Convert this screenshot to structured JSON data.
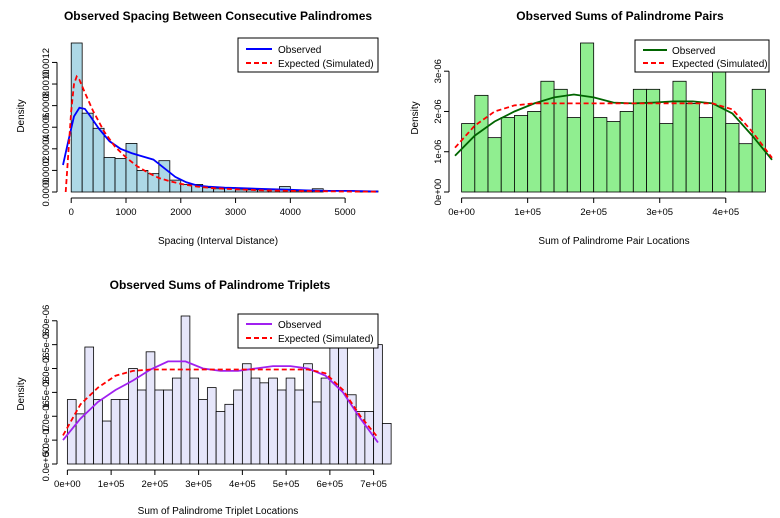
{
  "chart_data": [
    {
      "type": "bar",
      "title": "Observed Spacing Between Consecutive Palindromes",
      "xlabel": "Spacing (Interval Distance)",
      "ylabel": "Density",
      "xlim": [
        -150,
        5600
      ],
      "ylim": [
        0,
        0.00138
      ],
      "bin_width": 200,
      "bin_start": 0,
      "values": [
        0.00138,
        0.00073,
        0.00059,
        0.00032,
        0.00031,
        0.00045,
        0.0002,
        0.00017,
        0.00029,
        0.00011,
        7e-05,
        7e-05,
        4e-05,
        3e-05,
        4e-05,
        2e-05,
        2e-05,
        2e-05,
        2e-05,
        5e-05,
        1e-05,
        1e-05,
        3e-05,
        0.0,
        0.0,
        0.0,
        1e-05,
        1e-05
      ],
      "fill_color": "#add8e6",
      "x_ticks": [
        0,
        1000,
        2000,
        3000,
        4000,
        5000
      ],
      "x_tick_labels": [
        "0",
        "1000",
        "2000",
        "3000",
        "4000",
        "5000"
      ],
      "y_ticks": [
        0,
        0.0002,
        0.0004,
        0.0006,
        0.0008,
        0.001,
        0.0012
      ],
      "y_tick_labels": [
        "0.0000",
        "0.0002",
        "0.0004",
        "0.0006",
        "0.0008",
        "0.0010",
        "0.0012"
      ],
      "series": [
        {
          "name": "Observed",
          "color": "#0000ff",
          "dash": false,
          "x": [
            -150,
            -50,
            50,
            150,
            250,
            350,
            500,
            700,
            900,
            1100,
            1300,
            1500,
            1700,
            1900,
            2100,
            2300,
            2500,
            2800,
            3100,
            3400,
            3700,
            4000,
            4300,
            4700,
            5100,
            5600
          ],
          "y": [
            0.00025,
            0.00048,
            0.0007,
            0.00078,
            0.00077,
            0.0007,
            0.00059,
            0.00047,
            0.0004,
            0.00036,
            0.00033,
            0.0003,
            0.00022,
            0.00014,
            9e-05,
            6e-05,
            5e-05,
            4e-05,
            3.5e-05,
            3e-05,
            2.5e-05,
            2e-05,
            1.5e-05,
            1e-05,
            1e-05,
            5e-06
          ]
        },
        {
          "name": "Expected (Simulated)",
          "color": "#ff0000",
          "dash": true,
          "x": [
            -100,
            0,
            50,
            100,
            150,
            250,
            400,
            600,
            800,
            1000,
            1200,
            1400,
            1600,
            1800,
            2000,
            2300,
            2600,
            3000,
            3500,
            4000,
            4500,
            5000,
            5600
          ],
          "y": [
            0.0,
            0.00075,
            0.001,
            0.00107,
            0.00104,
            0.00092,
            0.00075,
            0.00056,
            0.00042,
            0.00032,
            0.00024,
            0.00018,
            0.00013,
            0.0001,
            7.5e-05,
            5e-05,
            3.5e-05,
            2.5e-05,
            1.5e-05,
            1e-05,
            7e-06,
            5e-06,
            3e-06
          ]
        }
      ],
      "legend_position": "top-right"
    },
    {
      "type": "bar",
      "title": "Observed Sums of Palindrome Pairs",
      "xlabel": "Sum of Palindrome Pair Locations",
      "ylabel": "Density",
      "xlim": [
        -10000,
        470000
      ],
      "ylim": [
        0,
        3.7e-06
      ],
      "bin_width": 20000,
      "bin_start": 0,
      "values": [
        1.7e-06,
        2.4e-06,
        1.35e-06,
        1.85e-06,
        1.9e-06,
        2e-06,
        2.75e-06,
        2.55e-06,
        1.85e-06,
        3.7e-06,
        1.85e-06,
        1.75e-06,
        2e-06,
        2.55e-06,
        2.55e-06,
        1.7e-06,
        2.75e-06,
        2.2e-06,
        1.85e-06,
        3.5e-06,
        1.7e-06,
        1.2e-06,
        2.55e-06
      ],
      "fill_color": "#90ee90",
      "x_ticks": [
        0,
        100000,
        200000,
        300000,
        400000
      ],
      "x_tick_labels": [
        "0e+00",
        "1e+05",
        "2e+05",
        "3e+05",
        "4e+05"
      ],
      "y_ticks": [
        0,
        1e-06,
        2e-06,
        3e-06
      ],
      "y_tick_labels": [
        "0e+00",
        "1e-06",
        "2e-06",
        "3e-06"
      ],
      "series": [
        {
          "name": "Observed",
          "color": "#006400",
          "dash": false,
          "x": [
            -10000,
            20000,
            50000,
            80000,
            110000,
            140000,
            170000,
            200000,
            230000,
            260000,
            290000,
            320000,
            350000,
            380000,
            410000,
            440000,
            470000
          ],
          "y": [
            9e-07,
            1.4e-06,
            1.75e-06,
            2e-06,
            2.2e-06,
            2.35e-06,
            2.42e-06,
            2.35e-06,
            2.22e-06,
            2.2e-06,
            2.22e-06,
            2.25e-06,
            2.25e-06,
            2.2e-06,
            1.95e-06,
            1.4e-06,
            8e-07
          ]
        },
        {
          "name": "Expected (Simulated)",
          "color": "#ff0000",
          "dash": true,
          "x": [
            -10000,
            20000,
            50000,
            80000,
            110000,
            140000,
            170000,
            200000,
            230000,
            260000,
            290000,
            320000,
            350000,
            380000,
            410000,
            440000,
            470000
          ],
          "y": [
            1.1e-06,
            1.65e-06,
            2e-06,
            2.15e-06,
            2.2e-06,
            2.2e-06,
            2.2e-06,
            2.2e-06,
            2.2e-06,
            2.2e-06,
            2.2e-06,
            2.2e-06,
            2.2e-06,
            2.2e-06,
            2.05e-06,
            1.5e-06,
            8.5e-07
          ]
        }
      ],
      "legend_position": "top-right"
    },
    {
      "type": "bar",
      "title": "Observed Sums of Palindrome Triplets",
      "xlabel": "Sum of Palindrome Triplet Locations",
      "ylabel": "Density",
      "xlim": [
        -10000,
        710000
      ],
      "ylim": [
        0,
        3.1e-06
      ],
      "bin_width": 20000,
      "bin_start": 0,
      "values": [
        1.35e-06,
        1.05e-06,
        2.45e-06,
        1.35e-06,
        9e-07,
        1.35e-06,
        1.35e-06,
        2e-06,
        1.55e-06,
        2.35e-06,
        1.55e-06,
        1.55e-06,
        1.8e-06,
        3.1e-06,
        1.8e-06,
        1.35e-06,
        1.6e-06,
        1.1e-06,
        1.25e-06,
        1.55e-06,
        2.1e-06,
        1.8e-06,
        1.7e-06,
        1.8e-06,
        1.55e-06,
        1.8e-06,
        1.55e-06,
        2.1e-06,
        1.3e-06,
        1.8e-06,
        2.6e-06,
        2.8e-06,
        1.45e-06,
        1.1e-06,
        1.1e-06,
        2.5e-06,
        8.5e-07
      ],
      "fill_color": "#e6e6fa",
      "x_ticks": [
        0,
        100000,
        200000,
        300000,
        400000,
        500000,
        600000,
        700000
      ],
      "x_tick_labels": [
        "0e+00",
        "1e+05",
        "2e+05",
        "3e+05",
        "4e+05",
        "5e+05",
        "6e+05",
        "7e+05"
      ],
      "y_ticks": [
        0,
        5e-07,
        1e-06,
        1.5e-06,
        2e-06,
        2.5e-06,
        3e-06
      ],
      "y_tick_labels": [
        "0.0e+00",
        "5.0e-07",
        "1.0e-06",
        "1.5e-06",
        "2.0e-06",
        "2.5e-06",
        "3.0e-06"
      ],
      "series": [
        {
          "name": "Observed",
          "color": "#a020f0",
          "dash": false,
          "x": [
            -10000,
            30000,
            70000,
            110000,
            150000,
            190000,
            230000,
            270000,
            310000,
            350000,
            390000,
            430000,
            470000,
            510000,
            550000,
            590000,
            630000,
            670000,
            710000
          ],
          "y": [
            5e-07,
            9.5e-07,
            1.3e-06,
            1.55e-06,
            1.75e-06,
            1.98e-06,
            2.15e-06,
            2.15e-06,
            2e-06,
            1.95e-06,
            1.95e-06,
            2e-06,
            2.05e-06,
            2.05e-06,
            2e-06,
            1.85e-06,
            1.5e-06,
            9.5e-07,
            4.5e-07
          ]
        },
        {
          "name": "Expected (Simulated)",
          "color": "#ff0000",
          "dash": true,
          "x": [
            -10000,
            30000,
            70000,
            110000,
            150000,
            190000,
            230000,
            270000,
            310000,
            350000,
            390000,
            430000,
            470000,
            510000,
            550000,
            590000,
            630000,
            670000,
            710000
          ],
          "y": [
            6e-07,
            1.25e-06,
            1.6e-06,
            1.85e-06,
            1.95e-06,
            1.98e-06,
            1.98e-06,
            1.98e-06,
            1.98e-06,
            1.98e-06,
            1.98e-06,
            1.98e-06,
            1.98e-06,
            1.98e-06,
            1.98e-06,
            1.9e-06,
            1.55e-06,
            1e-06,
            5.5e-07
          ]
        }
      ],
      "legend_position": "top-right"
    }
  ]
}
